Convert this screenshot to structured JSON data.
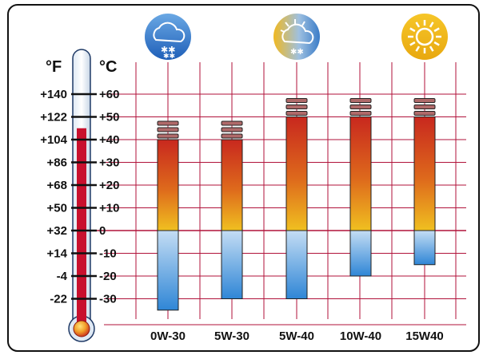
{
  "chart_data": {
    "type": "bar",
    "title": "",
    "left_axis_label": "°F",
    "right_axis_label": "°C",
    "fahrenheit_ticks": [
      "+140",
      "+122",
      "+104",
      "+86",
      "+68",
      "+50",
      "+32",
      "+14",
      "-4",
      "-22"
    ],
    "celsius_ticks": [
      "+60",
      "+50",
      "+40",
      "+30",
      "+20",
      "+10",
      "0",
      "-10",
      "-20",
      "-30"
    ],
    "celsius_values": [
      60,
      50,
      40,
      30,
      20,
      10,
      0,
      -10,
      -20,
      -30
    ],
    "ylim_celsius": [
      -40,
      65
    ],
    "categories": [
      "0W-30",
      "5W-30",
      "5W-40",
      "10W-40",
      "15W40"
    ],
    "series": [
      {
        "low_celsius": [
          -35,
          -30,
          -30,
          -20,
          -15
        ],
        "high_celsius": [
          40,
          40,
          50,
          50,
          50
        ]
      }
    ],
    "thermometer_level_celsius": 45,
    "condition_icons": [
      "snow-cloud-icon",
      "snow-sun-cloud-icon",
      "sun-icon"
    ],
    "colors": {
      "grid": "#b0123a",
      "zero_line": "#b0123a",
      "hot_top": "#c8281e",
      "hot_bottom": "#f0c020",
      "cold_top": "#b8d6f2",
      "cold_bottom": "#2f86d6",
      "cap": "#b06a6a",
      "mercury": "#c8102e",
      "border": "#111111"
    }
  }
}
